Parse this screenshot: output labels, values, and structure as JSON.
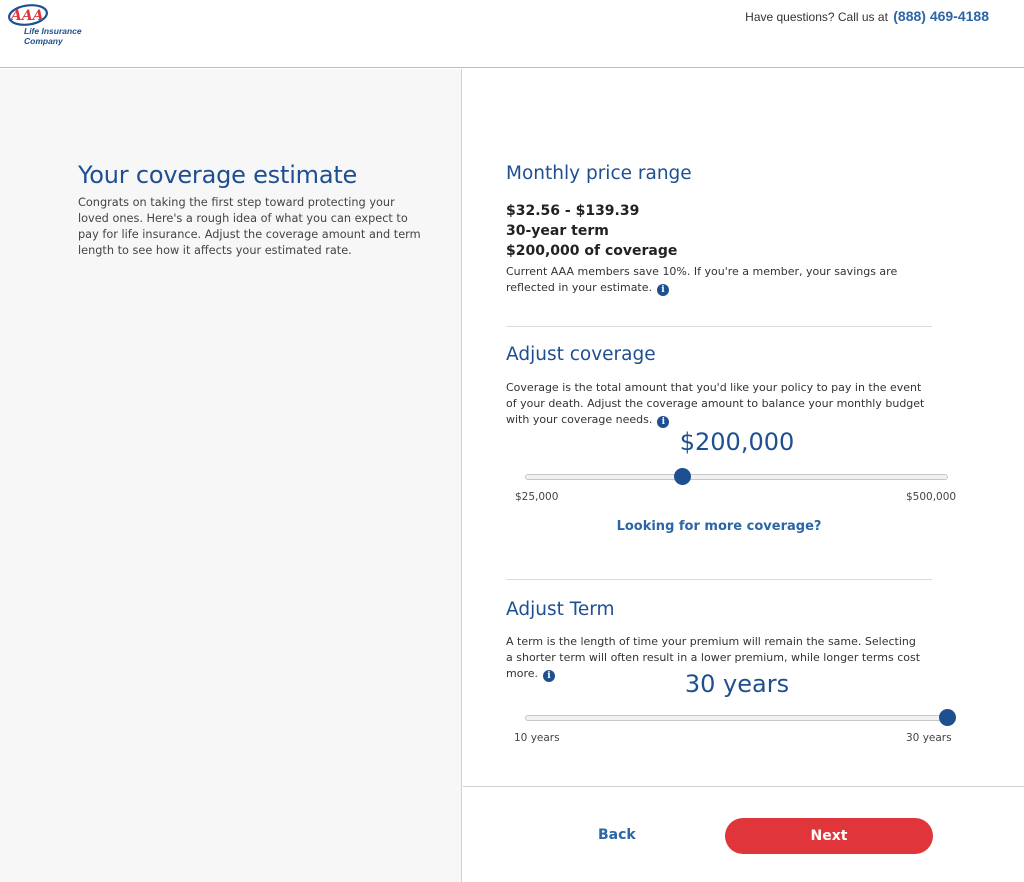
{
  "header": {
    "logo_text": "AAA",
    "logo_line1": "Life Insurance",
    "logo_line2": "Company",
    "help_text": "Have questions? Call us at",
    "phone": "(888) 469-4188"
  },
  "left": {
    "title": "Your coverage estimate",
    "intro": "Congrats on taking the first step toward protecting your loved ones. Here's a rough idea of what you can expect to pay for life insurance. Adjust the coverage amount and term length to see how it affects your estimated rate."
  },
  "price_section": {
    "title": "Monthly price range",
    "range": "$32.56 - $139.39",
    "term": "30-year term",
    "coverage": "$200,000 of coverage",
    "note": "Current AAA members save 10%. If you're a member, your savings are reflected in your estimate."
  },
  "coverage_section": {
    "title": "Adjust coverage",
    "description": "Coverage is the total amount that you'd like your policy to pay in the event of your death. Adjust the coverage amount to balance your monthly budget with your coverage needs.",
    "value": "$200,000",
    "slider_fraction": 0.37,
    "min_label": "$25,000",
    "max_label": "$500,000",
    "more_link": "Looking for more coverage?"
  },
  "term_section": {
    "title": "Adjust Term",
    "description": "A term is the length of time your premium will remain the same. Selecting a shorter term will often result in a lower premium, while longer terms cost more.",
    "value": "30 years",
    "slider_fraction": 1.0,
    "min_label": "10 years",
    "max_label": "30 years"
  },
  "footer": {
    "back_label": "Back",
    "next_label": "Next"
  },
  "colors": {
    "brand_blue": "#1e4f91",
    "link_blue": "#2b66a6",
    "next_red": "#e0353a"
  }
}
